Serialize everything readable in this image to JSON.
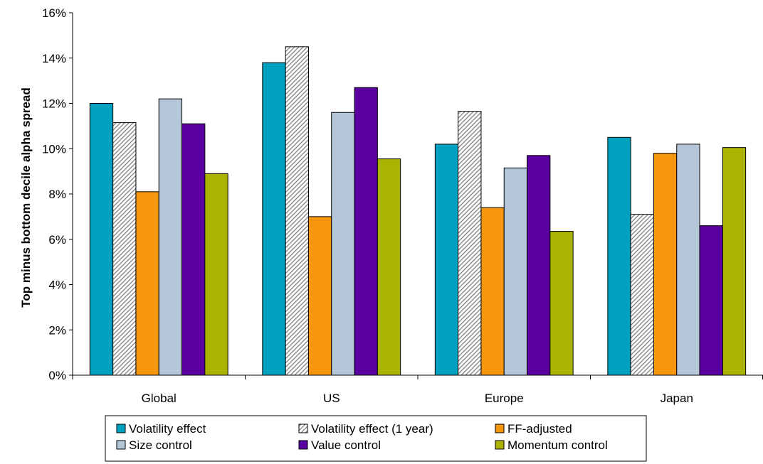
{
  "chart_data": {
    "type": "bar",
    "categories": [
      "Global",
      "US",
      "Europe",
      "Japan"
    ],
    "series": [
      {
        "name": "Volatility effect",
        "values": [
          12.0,
          13.8,
          10.2,
          10.5
        ],
        "color": "#00A0C0",
        "pattern": "solid"
      },
      {
        "name": "Volatility effect (1 year)",
        "values": [
          11.15,
          14.5,
          11.65,
          7.1
        ],
        "color": "#FFFFFF",
        "pattern": "hatched"
      },
      {
        "name": "FF-adjusted",
        "values": [
          8.1,
          7.0,
          7.4,
          9.8
        ],
        "color": "#F5960E",
        "pattern": "solid"
      },
      {
        "name": "Size control",
        "values": [
          12.2,
          11.6,
          9.15,
          10.2
        ],
        "color": "#B4C6D8",
        "pattern": "solid"
      },
      {
        "name": "Value control",
        "values": [
          11.1,
          12.7,
          9.7,
          6.6
        ],
        "color": "#5A00A0",
        "pattern": "solid"
      },
      {
        "name": "Momentum control",
        "values": [
          8.9,
          9.55,
          6.35,
          10.05
        ],
        "color": "#AAB400",
        "pattern": "solid"
      }
    ],
    "title": "",
    "xlabel": "",
    "ylabel": "Top minus bottom decile alpha spread",
    "ylim": [
      0,
      16
    ],
    "yticks": [
      0,
      2,
      4,
      6,
      8,
      10,
      12,
      14,
      16
    ],
    "ytick_labels": [
      "0%",
      "2%",
      "4%",
      "6%",
      "8%",
      "10%",
      "12%",
      "14%",
      "16%"
    ],
    "grid": false,
    "legend_position": "bottom",
    "legend_columns": 3
  }
}
